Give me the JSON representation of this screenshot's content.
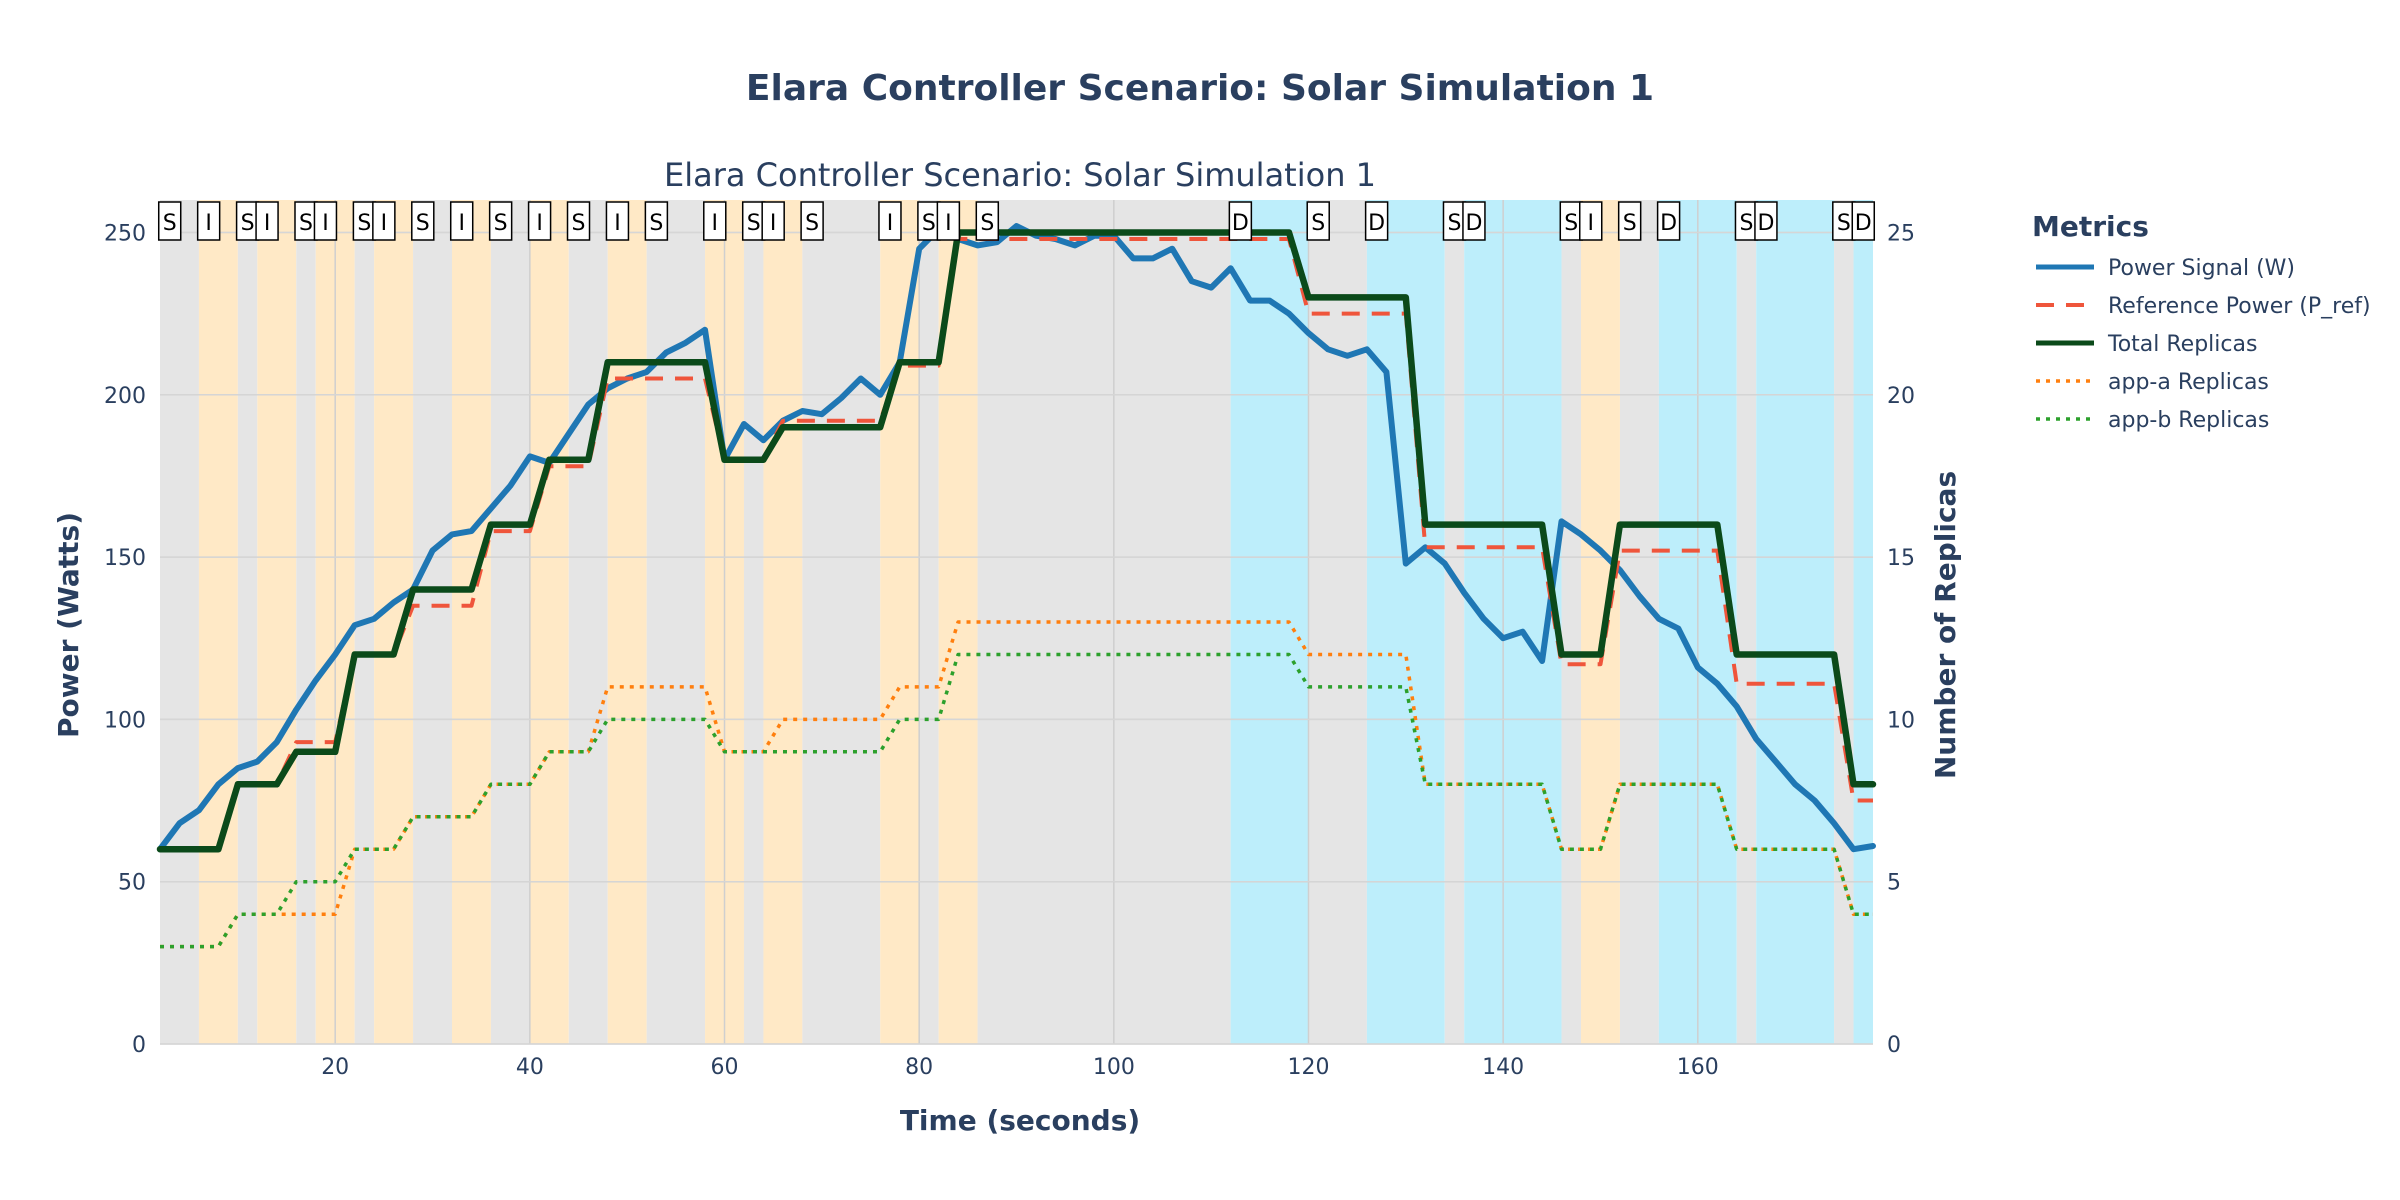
{
  "chart_data": {
    "type": "line",
    "title": "Elara Controller Scenario: Solar Simulation 1",
    "subtitle": "Elara Controller Scenario: Solar Simulation 1",
    "xlabel": "Time (seconds)",
    "ylabel": "Power (Watts)",
    "y2label": "Number of Replicas",
    "xlim": [
      2,
      178
    ],
    "ylim": [
      0,
      260
    ],
    "y2lim": [
      0,
      26
    ],
    "xticks": [
      20,
      40,
      60,
      80,
      100,
      120,
      140,
      160
    ],
    "yticks": [
      0,
      50,
      100,
      150,
      200,
      250
    ],
    "y2ticks": [
      0,
      5,
      10,
      15,
      20,
      25
    ],
    "grid": true,
    "legend": {
      "title": "Metrics",
      "position": "right"
    },
    "colors": {
      "power": "#1f77b4",
      "reference": "#ef553b",
      "total": "#0b4a1a",
      "app_a": "#ff7f0e",
      "app_b": "#2ca02c",
      "band_gray": "#e5e5e5",
      "band_orange": "#ffe9c6",
      "band_cyan": "#bdeefb"
    },
    "bands": [
      {
        "x0": 2,
        "x1": 6,
        "kind": "gray"
      },
      {
        "x0": 6,
        "x1": 10,
        "kind": "orange"
      },
      {
        "x0": 10,
        "x1": 12,
        "kind": "gray"
      },
      {
        "x0": 12,
        "x1": 16,
        "kind": "orange"
      },
      {
        "x0": 16,
        "x1": 18,
        "kind": "gray"
      },
      {
        "x0": 18,
        "x1": 22,
        "kind": "orange"
      },
      {
        "x0": 22,
        "x1": 24,
        "kind": "gray"
      },
      {
        "x0": 24,
        "x1": 28,
        "kind": "orange"
      },
      {
        "x0": 28,
        "x1": 32,
        "kind": "gray"
      },
      {
        "x0": 32,
        "x1": 36,
        "kind": "orange"
      },
      {
        "x0": 36,
        "x1": 40,
        "kind": "gray"
      },
      {
        "x0": 40,
        "x1": 44,
        "kind": "orange"
      },
      {
        "x0": 44,
        "x1": 48,
        "kind": "gray"
      },
      {
        "x0": 48,
        "x1": 52,
        "kind": "orange"
      },
      {
        "x0": 52,
        "x1": 58,
        "kind": "gray"
      },
      {
        "x0": 58,
        "x1": 62,
        "kind": "orange"
      },
      {
        "x0": 62,
        "x1": 64,
        "kind": "gray"
      },
      {
        "x0": 64,
        "x1": 68,
        "kind": "orange"
      },
      {
        "x0": 68,
        "x1": 76,
        "kind": "gray"
      },
      {
        "x0": 76,
        "x1": 80,
        "kind": "orange"
      },
      {
        "x0": 80,
        "x1": 82,
        "kind": "gray"
      },
      {
        "x0": 82,
        "x1": 86,
        "kind": "orange"
      },
      {
        "x0": 86,
        "x1": 112,
        "kind": "gray"
      },
      {
        "x0": 112,
        "x1": 120,
        "kind": "cyan"
      },
      {
        "x0": 120,
        "x1": 126,
        "kind": "gray"
      },
      {
        "x0": 126,
        "x1": 134,
        "kind": "cyan"
      },
      {
        "x0": 134,
        "x1": 136,
        "kind": "gray"
      },
      {
        "x0": 136,
        "x1": 146,
        "kind": "cyan"
      },
      {
        "x0": 146,
        "x1": 148,
        "kind": "gray"
      },
      {
        "x0": 148,
        "x1": 152,
        "kind": "orange"
      },
      {
        "x0": 152,
        "x1": 156,
        "kind": "gray"
      },
      {
        "x0": 156,
        "x1": 164,
        "kind": "cyan"
      },
      {
        "x0": 164,
        "x1": 166,
        "kind": "gray"
      },
      {
        "x0": 166,
        "x1": 174,
        "kind": "cyan"
      },
      {
        "x0": 174,
        "x1": 176,
        "kind": "gray"
      },
      {
        "x0": 176,
        "x1": 178,
        "kind": "cyan"
      }
    ],
    "events": [
      {
        "x": 3,
        "label": "S"
      },
      {
        "x": 7,
        "label": "I"
      },
      {
        "x": 11,
        "label": "S"
      },
      {
        "x": 13,
        "label": "I"
      },
      {
        "x": 17,
        "label": "S"
      },
      {
        "x": 19,
        "label": "I"
      },
      {
        "x": 23,
        "label": "S"
      },
      {
        "x": 25,
        "label": "I"
      },
      {
        "x": 29,
        "label": "S"
      },
      {
        "x": 33,
        "label": "I"
      },
      {
        "x": 37,
        "label": "S"
      },
      {
        "x": 41,
        "label": "I"
      },
      {
        "x": 45,
        "label": "S"
      },
      {
        "x": 49,
        "label": "I"
      },
      {
        "x": 53,
        "label": "S"
      },
      {
        "x": 59,
        "label": "I"
      },
      {
        "x": 63,
        "label": "S"
      },
      {
        "x": 65,
        "label": "I"
      },
      {
        "x": 69,
        "label": "S"
      },
      {
        "x": 77,
        "label": "I"
      },
      {
        "x": 81,
        "label": "S"
      },
      {
        "x": 83,
        "label": "I"
      },
      {
        "x": 87,
        "label": "S"
      },
      {
        "x": 113,
        "label": "D"
      },
      {
        "x": 121,
        "label": "S"
      },
      {
        "x": 127,
        "label": "D"
      },
      {
        "x": 135,
        "label": "S"
      },
      {
        "x": 137,
        "label": "D"
      },
      {
        "x": 147,
        "label": "S"
      },
      {
        "x": 149,
        "label": "I"
      },
      {
        "x": 153,
        "label": "S"
      },
      {
        "x": 157,
        "label": "D"
      },
      {
        "x": 165,
        "label": "S"
      },
      {
        "x": 167,
        "label": "D"
      },
      {
        "x": 175,
        "label": "S"
      },
      {
        "x": 177,
        "label": "D"
      }
    ],
    "series": [
      {
        "name": "Power Signal (W)",
        "axis": "y",
        "style": "solid",
        "x": [
          2,
          4,
          6,
          8,
          10,
          12,
          14,
          16,
          18,
          20,
          22,
          24,
          26,
          28,
          30,
          32,
          34,
          36,
          38,
          40,
          42,
          44,
          46,
          48,
          50,
          52,
          54,
          56,
          58,
          60,
          62,
          64,
          66,
          68,
          70,
          72,
          74,
          76,
          78,
          80,
          82,
          84,
          86,
          88,
          90,
          92,
          94,
          96,
          98,
          100,
          102,
          104,
          106,
          108,
          110,
          112,
          114,
          116,
          118,
          120,
          122,
          124,
          126,
          128,
          130,
          132,
          134,
          136,
          138,
          140,
          142,
          144,
          146,
          148,
          150,
          152,
          154,
          156,
          158,
          160,
          162,
          164,
          166,
          168,
          170,
          172,
          174,
          176,
          178
        ],
        "values": [
          60,
          68,
          72,
          80,
          85,
          87,
          93,
          103,
          112,
          120,
          129,
          131,
          136,
          140,
          152,
          157,
          158,
          165,
          172,
          181,
          179,
          188,
          197,
          202,
          205,
          207,
          213,
          216,
          220,
          180,
          191,
          186,
          192,
          195,
          194,
          199,
          205,
          200,
          210,
          245,
          251,
          248,
          246,
          247,
          252,
          249,
          248,
          246,
          249,
          249,
          242,
          242,
          245,
          235,
          233,
          239,
          229,
          229,
          225,
          219,
          214,
          212,
          214,
          207,
          148,
          153,
          148,
          139,
          131,
          125,
          127,
          118,
          161,
          157,
          152,
          146,
          138,
          131,
          128,
          116,
          111,
          104,
          94,
          87,
          80,
          75,
          68,
          60,
          61
        ]
      },
      {
        "name": "Reference Power (P_ref)",
        "axis": "y",
        "style": "dash",
        "x": [
          2,
          8,
          10,
          14,
          16,
          20,
          22,
          26,
          28,
          34,
          36,
          40,
          42,
          46,
          48,
          52,
          54,
          58,
          60,
          64,
          66,
          70,
          72,
          76,
          78,
          82,
          84,
          86,
          88,
          118,
          120,
          130,
          132,
          144,
          146,
          150,
          152,
          162,
          164,
          174,
          176,
          178
        ],
        "values": [
          60,
          60,
          80,
          80,
          93,
          93,
          120,
          120,
          135,
          135,
          158,
          158,
          178,
          178,
          205,
          205,
          205,
          205,
          180,
          180,
          192,
          192,
          192,
          192,
          209,
          209,
          248,
          248,
          248,
          248,
          225,
          225,
          153,
          153,
          117,
          117,
          152,
          152,
          111,
          111,
          75,
          75
        ]
      },
      {
        "name": "Total Replicas",
        "axis": "y2",
        "style": "solid",
        "x": [
          2,
          8,
          10,
          14,
          16,
          20,
          22,
          26,
          28,
          34,
          36,
          40,
          42,
          46,
          48,
          52,
          54,
          58,
          60,
          64,
          66,
          70,
          72,
          76,
          78,
          82,
          84,
          86,
          88,
          118,
          120,
          130,
          132,
          144,
          146,
          150,
          152,
          162,
          164,
          174,
          176,
          178
        ],
        "values": [
          6,
          6,
          8,
          8,
          9,
          9,
          12,
          12,
          14,
          14,
          16,
          16,
          18,
          18,
          21,
          21,
          21,
          21,
          18,
          18,
          19,
          19,
          19,
          19,
          21,
          21,
          25,
          25,
          25,
          25,
          23,
          23,
          16,
          16,
          12,
          12,
          16,
          16,
          12,
          12,
          8,
          8
        ]
      },
      {
        "name": "app-a Replicas",
        "axis": "y2",
        "style": "dot",
        "x": [
          2,
          8,
          10,
          14,
          16,
          20,
          22,
          26,
          28,
          34,
          36,
          40,
          42,
          46,
          48,
          52,
          54,
          58,
          60,
          64,
          66,
          70,
          72,
          76,
          78,
          82,
          84,
          86,
          88,
          118,
          120,
          130,
          132,
          144,
          146,
          150,
          152,
          162,
          164,
          174,
          176,
          178
        ],
        "values": [
          3,
          3,
          4,
          4,
          4,
          4,
          6,
          6,
          7,
          7,
          8,
          8,
          9,
          9,
          11,
          11,
          11,
          11,
          9,
          9,
          10,
          10,
          10,
          10,
          11,
          11,
          13,
          13,
          13,
          13,
          12,
          12,
          8,
          8,
          6,
          6,
          8,
          8,
          6,
          6,
          4,
          4
        ]
      },
      {
        "name": "app-b Replicas",
        "axis": "y2",
        "style": "dot",
        "x": [
          2,
          8,
          10,
          14,
          16,
          20,
          22,
          26,
          28,
          34,
          36,
          40,
          42,
          46,
          48,
          52,
          54,
          58,
          60,
          64,
          66,
          70,
          72,
          76,
          78,
          82,
          84,
          86,
          88,
          118,
          120,
          130,
          132,
          144,
          146,
          150,
          152,
          162,
          164,
          174,
          176,
          178
        ],
        "values": [
          3,
          3,
          4,
          4,
          5,
          5,
          6,
          6,
          7,
          7,
          8,
          8,
          9,
          9,
          10,
          10,
          10,
          10,
          9,
          9,
          9,
          9,
          9,
          9,
          10,
          10,
          12,
          12,
          12,
          12,
          11,
          11,
          8,
          8,
          6,
          6,
          8,
          8,
          6,
          6,
          4,
          4
        ]
      }
    ]
  }
}
